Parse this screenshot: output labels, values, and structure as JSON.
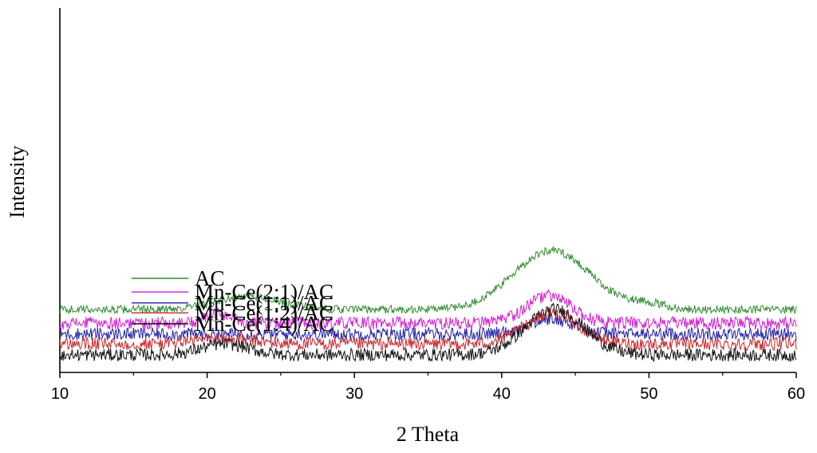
{
  "chart_data": {
    "type": "line",
    "title": "",
    "xlabel": "2 Theta",
    "ylabel": "Intensity",
    "xlim": [
      10,
      60
    ],
    "xticks": [
      10,
      20,
      30,
      40,
      50,
      60
    ],
    "xtick_labels": [
      "10",
      "20",
      "30",
      "40",
      "50",
      "60"
    ],
    "y_ticks_shown": false,
    "grid": false,
    "legend": "inline-left",
    "series": [
      {
        "name": "AC",
        "color": "#2e8b2e",
        "baseline": 5,
        "noise": 0.9,
        "peaks": [
          {
            "center": 22.8,
            "height": 1.4,
            "width": 2.2
          },
          {
            "center": 43.4,
            "height": 6.5,
            "width": 2.6
          },
          {
            "center": 49.8,
            "height": 0.6,
            "width": 1.2
          }
        ]
      },
      {
        "name": "Mn-Ce(2:1)/AC",
        "color": "#d11fd1",
        "baseline": 3.5,
        "noise": 1.4,
        "peaks": [
          {
            "center": 20.8,
            "height": 1.0,
            "width": 0.8
          },
          {
            "center": 43.2,
            "height": 3.0,
            "width": 1.5
          }
        ]
      },
      {
        "name": "Mn-Ce(1:1)/AC",
        "color": "#1f1fa6",
        "baseline": 2.3,
        "noise": 1.4,
        "peaks": [
          {
            "center": 43.4,
            "height": 1.6,
            "width": 1.6
          }
        ]
      },
      {
        "name": "Mn-Ce(1:2)/AC",
        "color": "#c8282d",
        "baseline": 1.2,
        "noise": 1.4,
        "peaks": [
          {
            "center": 21.0,
            "height": 0.6,
            "width": 2.0
          },
          {
            "center": 43.4,
            "height": 3.4,
            "width": 1.8
          }
        ]
      },
      {
        "name": "Mn-Ce(1:4)/AC",
        "color": "#111111",
        "baseline": 0,
        "noise": 1.4,
        "peaks": [
          {
            "center": 21.2,
            "height": 1.2,
            "width": 1.6
          },
          {
            "center": 43.6,
            "height": 5.0,
            "width": 2.0
          }
        ]
      }
    ]
  }
}
